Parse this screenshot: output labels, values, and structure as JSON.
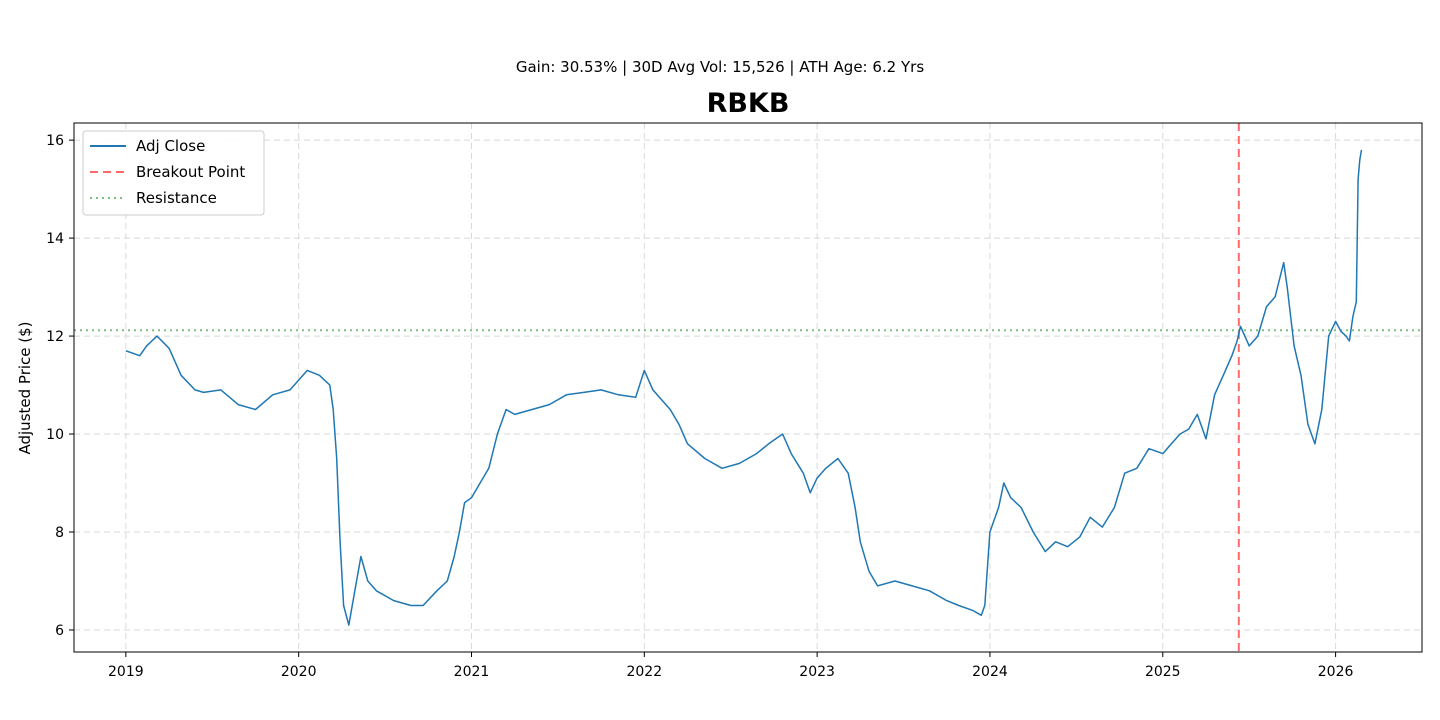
{
  "chart_data": {
    "type": "line",
    "title": "RBKB",
    "subtitle": "Gain: 30.53% | 30D Avg Vol: 15,526 | ATH Age: 6.2 Yrs",
    "xlabel": "",
    "ylabel": "Adjusted Price ($)",
    "xlim": [
      2018.7,
      2026.5
    ],
    "ylim": [
      5.55,
      16.35
    ],
    "x_ticks": [
      2019,
      2020,
      2021,
      2022,
      2023,
      2024,
      2025,
      2026
    ],
    "y_ticks": [
      6,
      8,
      10,
      12,
      14,
      16
    ],
    "grid": true,
    "legend_position": "upper-left",
    "legend": [
      "Adj Close",
      "Breakout Point",
      "Resistance"
    ],
    "series": [
      {
        "name": "Adj Close",
        "color": "#1f77b4",
        "x": [
          2019.0,
          2019.08,
          2019.12,
          2019.18,
          2019.25,
          2019.32,
          2019.4,
          2019.45,
          2019.55,
          2019.65,
          2019.75,
          2019.85,
          2019.95,
          2020.05,
          2020.12,
          2020.18,
          2020.2,
          2020.22,
          2020.24,
          2020.26,
          2020.29,
          2020.33,
          2020.36,
          2020.4,
          2020.45,
          2020.55,
          2020.65,
          2020.72,
          2020.8,
          2020.86,
          2020.9,
          2020.93,
          2020.96,
          2021.0,
          2021.05,
          2021.1,
          2021.15,
          2021.2,
          2021.25,
          2021.35,
          2021.45,
          2021.55,
          2021.65,
          2021.75,
          2021.85,
          2021.95,
          2022.0,
          2022.05,
          2022.1,
          2022.15,
          2022.2,
          2022.25,
          2022.35,
          2022.45,
          2022.55,
          2022.65,
          2022.72,
          2022.8,
          2022.85,
          2022.92,
          2022.96,
          2023.0,
          2023.05,
          2023.12,
          2023.18,
          2023.22,
          2023.25,
          2023.3,
          2023.35,
          2023.45,
          2023.55,
          2023.65,
          2023.75,
          2023.82,
          2023.9,
          2023.95,
          2023.97,
          2024.0,
          2024.05,
          2024.08,
          2024.12,
          2024.18,
          2024.25,
          2024.32,
          2024.38,
          2024.45,
          2024.52,
          2024.58,
          2024.65,
          2024.72,
          2024.78,
          2024.85,
          2024.92,
          2025.0,
          2025.05,
          2025.1,
          2025.15,
          2025.2,
          2025.25,
          2025.3,
          2025.35,
          2025.4,
          2025.43,
          2025.45,
          2025.5,
          2025.55,
          2025.6,
          2025.65,
          2025.7,
          2025.72,
          2025.76,
          2025.8,
          2025.84,
          2025.88,
          2025.92,
          2025.96,
          2026.0,
          2026.03,
          2026.06,
          2026.08,
          2026.1,
          2026.12,
          2026.13,
          2026.14,
          2026.15
        ],
        "y": [
          11.7,
          11.6,
          11.8,
          12.0,
          11.75,
          11.2,
          10.9,
          10.85,
          10.9,
          10.6,
          10.5,
          10.8,
          10.9,
          11.3,
          11.2,
          11.0,
          10.5,
          9.5,
          7.8,
          6.5,
          6.1,
          6.9,
          7.5,
          7.0,
          6.8,
          6.6,
          6.5,
          6.5,
          6.8,
          7.0,
          7.5,
          8.0,
          8.6,
          8.7,
          9.0,
          9.3,
          10.0,
          10.5,
          10.4,
          10.5,
          10.6,
          10.8,
          10.85,
          10.9,
          10.8,
          10.75,
          11.3,
          10.9,
          10.7,
          10.5,
          10.2,
          9.8,
          9.5,
          9.3,
          9.4,
          9.6,
          9.8,
          10.0,
          9.6,
          9.2,
          8.8,
          9.1,
          9.3,
          9.5,
          9.2,
          8.5,
          7.8,
          7.2,
          6.9,
          7.0,
          6.9,
          6.8,
          6.6,
          6.5,
          6.4,
          6.3,
          6.5,
          8.0,
          8.5,
          9.0,
          8.7,
          8.5,
          8.0,
          7.6,
          7.8,
          7.7,
          7.9,
          8.3,
          8.1,
          8.5,
          9.2,
          9.3,
          9.7,
          9.6,
          9.8,
          10.0,
          10.1,
          10.4,
          9.9,
          10.8,
          11.2,
          11.6,
          11.9,
          12.2,
          11.8,
          12.0,
          12.6,
          12.8,
          13.5,
          13.0,
          11.8,
          11.2,
          10.2,
          9.8,
          10.5,
          12.0,
          12.3,
          12.1,
          12.0,
          11.9,
          12.4,
          12.7,
          15.2,
          15.6,
          15.8
        ]
      }
    ],
    "breakout": {
      "name": "Breakout Point",
      "x": 2025.44,
      "color": "#ff6b6b"
    },
    "resistance": {
      "name": "Resistance",
      "y": 12.12,
      "color": "#7cc07c"
    }
  }
}
